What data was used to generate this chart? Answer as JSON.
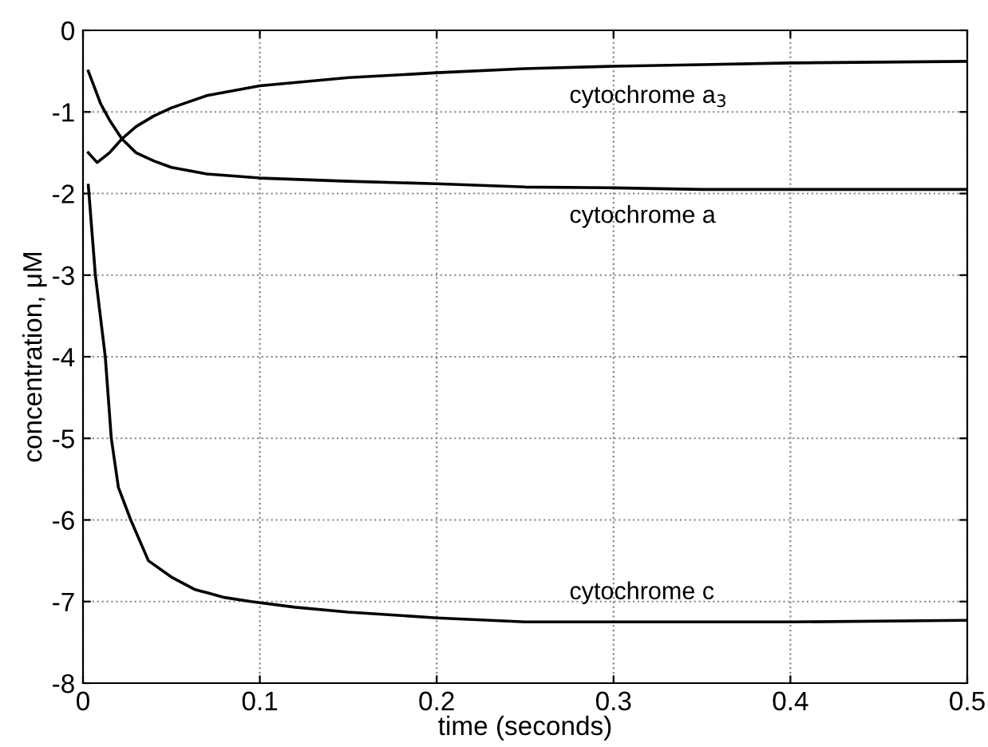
{
  "chart_data": {
    "type": "line",
    "xlabel": "time (seconds)",
    "ylabel": "concentration, μM",
    "xlim": [
      0,
      0.5
    ],
    "ylim": [
      -8,
      0
    ],
    "xticks": [
      0,
      0.1,
      0.2,
      0.3,
      0.4,
      0.5
    ],
    "yticks": [
      -8,
      -7,
      -6,
      -5,
      -4,
      -3,
      -2,
      -1,
      0
    ],
    "grid": true,
    "line_style": "solid",
    "series": [
      {
        "name": "cytochrome a$_{3}$",
        "color": "#000000",
        "x": [
          0.003,
          0.008,
          0.015,
          0.022,
          0.03,
          0.04,
          0.05,
          0.07,
          0.1,
          0.15,
          0.2,
          0.25,
          0.3,
          0.35,
          0.4,
          0.45,
          0.5
        ],
        "values": [
          -1.5,
          -1.62,
          -1.5,
          -1.33,
          -1.18,
          -1.05,
          -0.95,
          -0.8,
          -0.68,
          -0.58,
          -0.52,
          -0.47,
          -0.44,
          -0.42,
          -0.4,
          -0.39,
          -0.38
        ]
      },
      {
        "name": "cytochrome a",
        "color": "#000000",
        "x": [
          0.003,
          0.01,
          0.015,
          0.022,
          0.03,
          0.04,
          0.05,
          0.07,
          0.1,
          0.15,
          0.2,
          0.25,
          0.3,
          0.35,
          0.4,
          0.45,
          0.5
        ],
        "values": [
          -0.5,
          -0.9,
          -1.1,
          -1.33,
          -1.5,
          -1.6,
          -1.68,
          -1.76,
          -1.81,
          -1.85,
          -1.88,
          -1.92,
          -1.93,
          -1.95,
          -1.95,
          -1.95,
          -1.95
        ]
      },
      {
        "name": "cytochrome c",
        "color": "#000000",
        "x": [
          0.003,
          0.007,
          0.0126,
          0.016,
          0.02,
          0.027,
          0.037,
          0.05,
          0.063,
          0.08,
          0.095,
          0.12,
          0.15,
          0.2,
          0.25,
          0.3,
          0.4,
          0.5
        ],
        "values": [
          -1.9,
          -3.0,
          -4.0,
          -5.0,
          -5.6,
          -6.0,
          -6.5,
          -6.7,
          -6.85,
          -6.95,
          -7.0,
          -7.07,
          -7.13,
          -7.2,
          -7.25,
          -7.25,
          -7.25,
          -7.23
        ]
      }
    ]
  }
}
